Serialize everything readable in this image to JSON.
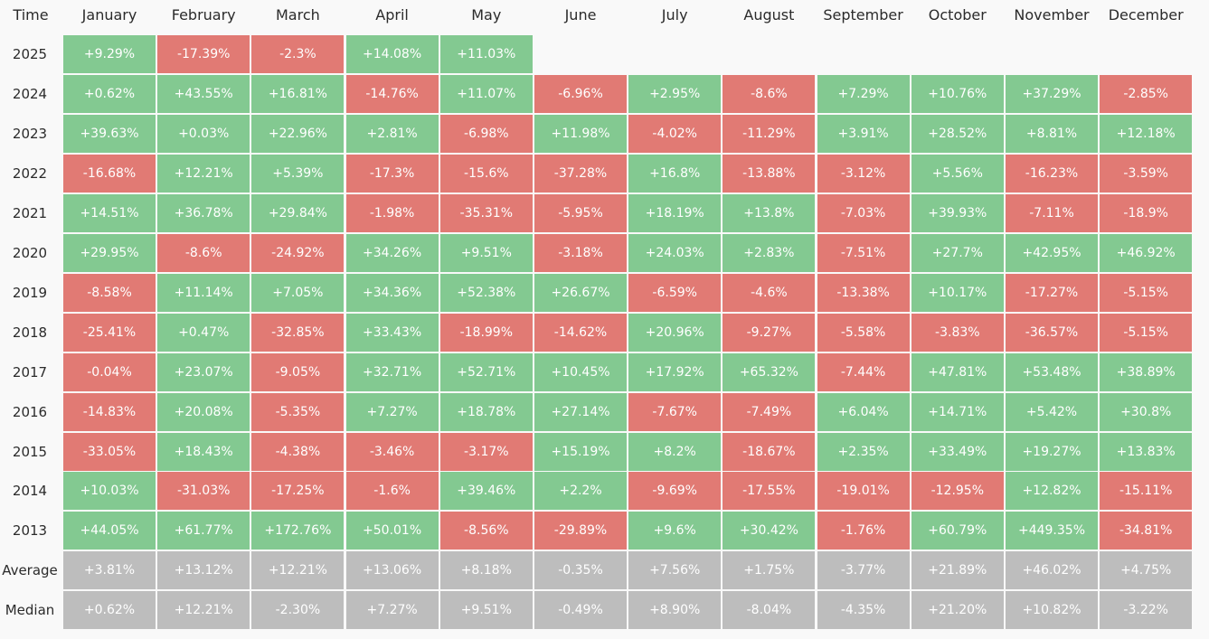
{
  "colors": {
    "positive": "#83c991",
    "negative": "#e17a74",
    "summary": "#bdbdbd",
    "background": "#f9f9f9",
    "text": "#2b2b2b"
  },
  "chart_data": {
    "type": "heatmap",
    "corner_label": "Time",
    "columns": [
      "January",
      "February",
      "March",
      "April",
      "May",
      "June",
      "July",
      "August",
      "September",
      "October",
      "November",
      "December"
    ],
    "rows": [
      {
        "label": "2025",
        "values": [
          "+9.29%",
          "-17.39%",
          "-2.3%",
          "+14.08%",
          "+11.03%",
          "",
          "",
          "",
          "",
          "",
          "",
          ""
        ]
      },
      {
        "label": "2024",
        "values": [
          "+0.62%",
          "+43.55%",
          "+16.81%",
          "-14.76%",
          "+11.07%",
          "-6.96%",
          "+2.95%",
          "-8.6%",
          "+7.29%",
          "+10.76%",
          "+37.29%",
          "-2.85%"
        ]
      },
      {
        "label": "2023",
        "values": [
          "+39.63%",
          "+0.03%",
          "+22.96%",
          "+2.81%",
          "-6.98%",
          "+11.98%",
          "-4.02%",
          "-11.29%",
          "+3.91%",
          "+28.52%",
          "+8.81%",
          "+12.18%"
        ]
      },
      {
        "label": "2022",
        "values": [
          "-16.68%",
          "+12.21%",
          "+5.39%",
          "-17.3%",
          "-15.6%",
          "-37.28%",
          "+16.8%",
          "-13.88%",
          "-3.12%",
          "+5.56%",
          "-16.23%",
          "-3.59%"
        ]
      },
      {
        "label": "2021",
        "values": [
          "+14.51%",
          "+36.78%",
          "+29.84%",
          "-1.98%",
          "-35.31%",
          "-5.95%",
          "+18.19%",
          "+13.8%",
          "-7.03%",
          "+39.93%",
          "-7.11%",
          "-18.9%"
        ]
      },
      {
        "label": "2020",
        "values": [
          "+29.95%",
          "-8.6%",
          "-24.92%",
          "+34.26%",
          "+9.51%",
          "-3.18%",
          "+24.03%",
          "+2.83%",
          "-7.51%",
          "+27.7%",
          "+42.95%",
          "+46.92%"
        ]
      },
      {
        "label": "2019",
        "values": [
          "-8.58%",
          "+11.14%",
          "+7.05%",
          "+34.36%",
          "+52.38%",
          "+26.67%",
          "-6.59%",
          "-4.6%",
          "-13.38%",
          "+10.17%",
          "-17.27%",
          "-5.15%"
        ]
      },
      {
        "label": "2018",
        "values": [
          "-25.41%",
          "+0.47%",
          "-32.85%",
          "+33.43%",
          "-18.99%",
          "-14.62%",
          "+20.96%",
          "-9.27%",
          "-5.58%",
          "-3.83%",
          "-36.57%",
          "-5.15%"
        ]
      },
      {
        "label": "2017",
        "values": [
          "-0.04%",
          "+23.07%",
          "-9.05%",
          "+32.71%",
          "+52.71%",
          "+10.45%",
          "+17.92%",
          "+65.32%",
          "-7.44%",
          "+47.81%",
          "+53.48%",
          "+38.89%"
        ]
      },
      {
        "label": "2016",
        "values": [
          "-14.83%",
          "+20.08%",
          "-5.35%",
          "+7.27%",
          "+18.78%",
          "+27.14%",
          "-7.67%",
          "-7.49%",
          "+6.04%",
          "+14.71%",
          "+5.42%",
          "+30.8%"
        ]
      },
      {
        "label": "2015",
        "values": [
          "-33.05%",
          "+18.43%",
          "-4.38%",
          "-3.46%",
          "-3.17%",
          "+15.19%",
          "+8.2%",
          "-18.67%",
          "+2.35%",
          "+33.49%",
          "+19.27%",
          "+13.83%"
        ]
      },
      {
        "label": "2014",
        "values": [
          "+10.03%",
          "-31.03%",
          "-17.25%",
          "-1.6%",
          "+39.46%",
          "+2.2%",
          "-9.69%",
          "-17.55%",
          "-19.01%",
          "-12.95%",
          "+12.82%",
          "-15.11%"
        ]
      },
      {
        "label": "2013",
        "values": [
          "+44.05%",
          "+61.77%",
          "+172.76%",
          "+50.01%",
          "-8.56%",
          "-29.89%",
          "+9.6%",
          "+30.42%",
          "-1.76%",
          "+60.79%",
          "+449.35%",
          "-34.81%"
        ]
      }
    ],
    "summary_rows": [
      {
        "label": "Average",
        "values": [
          "+3.81%",
          "+13.12%",
          "+12.21%",
          "+13.06%",
          "+8.18%",
          "-0.35%",
          "+7.56%",
          "+1.75%",
          "-3.77%",
          "+21.89%",
          "+46.02%",
          "+4.75%"
        ]
      },
      {
        "label": "Median",
        "values": [
          "+0.62%",
          "+12.21%",
          "-2.30%",
          "+7.27%",
          "+9.51%",
          "-0.49%",
          "+8.90%",
          "-8.04%",
          "-4.35%",
          "+21.20%",
          "+10.82%",
          "-3.22%"
        ]
      }
    ]
  }
}
